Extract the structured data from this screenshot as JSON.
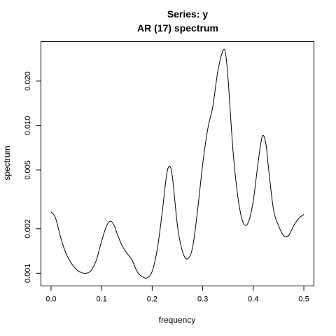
{
  "chart_data": {
    "type": "line",
    "title": "Series: y",
    "subtitle": "AR (17) spectrum",
    "xlabel": "frequency",
    "ylabel": "spectrum",
    "xlim": [
      -0.02,
      0.52
    ],
    "ylim": [
      0.00082,
      0.037
    ],
    "y_scale": "log",
    "grid": false,
    "x_ticks": [
      0.0,
      0.1,
      0.2,
      0.3,
      0.4,
      0.5
    ],
    "x_tick_labels": [
      "0.0",
      "0.1",
      "0.2",
      "0.3",
      "0.4",
      "0.5"
    ],
    "y_ticks": [
      0.001,
      0.002,
      0.005,
      0.01,
      0.02
    ],
    "y_tick_labels": [
      "0.001",
      "0.002",
      "0.005",
      "0.010",
      "0.020"
    ],
    "series": [
      {
        "color": "#000000",
        "x": [
          0.0,
          0.005,
          0.01,
          0.02,
          0.03,
          0.04,
          0.05,
          0.06,
          0.07,
          0.08,
          0.09,
          0.1,
          0.11,
          0.118,
          0.125,
          0.13,
          0.14,
          0.15,
          0.16,
          0.17,
          0.18,
          0.19,
          0.2,
          0.21,
          0.22,
          0.228,
          0.234,
          0.24,
          0.25,
          0.26,
          0.27,
          0.28,
          0.29,
          0.3,
          0.31,
          0.32,
          0.33,
          0.34,
          0.345,
          0.35,
          0.36,
          0.37,
          0.38,
          0.39,
          0.4,
          0.41,
          0.418,
          0.425,
          0.43,
          0.44,
          0.45,
          0.46,
          0.47,
          0.48,
          0.49,
          0.5
        ],
        "y": [
          0.0026,
          0.0025,
          0.0023,
          0.0017,
          0.00135,
          0.00117,
          0.00106,
          0.00101,
          0.001,
          0.00105,
          0.00124,
          0.00165,
          0.0021,
          0.00225,
          0.0021,
          0.00188,
          0.00155,
          0.00137,
          0.00123,
          0.00103,
          0.00095,
          0.00093,
          0.00103,
          0.00145,
          0.0026,
          0.0045,
          0.0053,
          0.0045,
          0.0021,
          0.0014,
          0.00125,
          0.0015,
          0.0027,
          0.0055,
          0.0095,
          0.0135,
          0.0235,
          0.032,
          0.031,
          0.021,
          0.0067,
          0.0032,
          0.0022,
          0.0022,
          0.0031,
          0.0058,
          0.0085,
          0.0075,
          0.0052,
          0.0027,
          0.0021,
          0.0018,
          0.0018,
          0.0021,
          0.00235,
          0.0025
        ]
      }
    ]
  }
}
